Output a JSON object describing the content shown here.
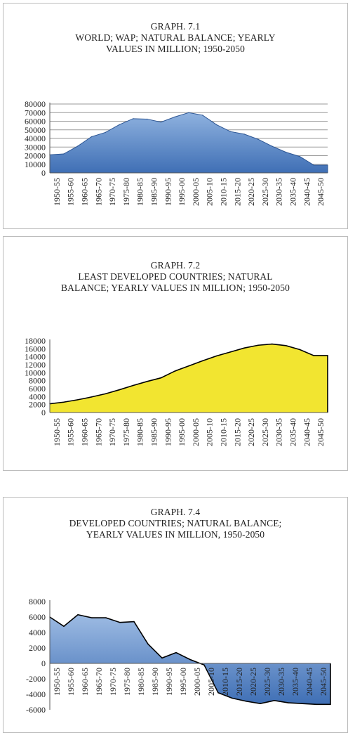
{
  "charts": [
    {
      "title_lines": [
        "GRAPH. 7.1",
        "WORLD; WAP; NATURAL BALANCE; YEARLY",
        "VALUES IN MILLION; 1950-2050"
      ],
      "fill": "#3f6fb5",
      "fill_top": "#8fb2df",
      "stroke": "#2c5593"
    },
    {
      "title_lines": [
        "GRAPH. 7.2",
        "LEAST DEVELOPED COUNTRIES; NATURAL",
        "BALANCE; YEARLY VALUES IN MILLION; 1950-2050"
      ],
      "fill": "#f2e530",
      "fill_top": "#f2e530",
      "stroke": "#000000"
    },
    {
      "title_lines": [
        "GRAPH. 7.4",
        "DEVELOPED COUNTRIES; NATURAL BALANCE;",
        "YEARLY VALUES IN MILLION, 1950-2050"
      ],
      "fill": "#3f6fb5",
      "fill_top": "#9dbbe3",
      "stroke": "#000000"
    }
  ],
  "chart_data": [
    {
      "type": "area",
      "title": "GRAPH. 7.1 WORLD; WAP; NATURAL BALANCE; YEARLY VALUES IN MILLION; 1950-2050",
      "categories": [
        "1950-55",
        "1955-60",
        "1960-65",
        "1965-70",
        "1970-75",
        "1975-80",
        "1980-85",
        "1985-90",
        "1990-95",
        "1995-00",
        "2000-05",
        "2005-10",
        "2010-15",
        "2015-20",
        "2020-25",
        "2025-30",
        "2030-35",
        "2035-40",
        "2040-45",
        "2045-50"
      ],
      "values": [
        21000,
        22000,
        31000,
        42000,
        47000,
        56000,
        63000,
        62500,
        59000,
        65000,
        70000,
        67000,
        56000,
        48000,
        45000,
        39000,
        31000,
        24000,
        19000,
        9000
      ],
      "yticks": [
        0,
        10000,
        20000,
        30000,
        40000,
        50000,
        60000,
        70000,
        80000
      ],
      "ylim": [
        0,
        80000
      ],
      "grid": true
    },
    {
      "type": "area",
      "title": "GRAPH. 7.2 LEAST DEVELOPED COUNTRIES; NATURAL BALANCE; YEARLY VALUES IN MILLION; 1950-2050",
      "categories": [
        "1950-55",
        "1955-60",
        "1960-65",
        "1965-70",
        "1970-75",
        "1975-80",
        "1980-85",
        "1985-90",
        "1990-95",
        "1995-00",
        "2000-05",
        "2005-10",
        "2010-15",
        "2015-20",
        "2020-25",
        "2025-30",
        "2030-35",
        "2035-40",
        "2040-45",
        "2045-50"
      ],
      "values": [
        2200,
        2600,
        3200,
        3900,
        4700,
        5700,
        6800,
        7800,
        8700,
        10400,
        11700,
        13000,
        14200,
        15200,
        16200,
        16900,
        17200,
        16800,
        15800,
        14300
      ],
      "yticks": [
        0,
        2000,
        4000,
        6000,
        8000,
        10000,
        12000,
        14000,
        16000,
        18000
      ],
      "ylim": [
        0,
        18000
      ],
      "grid": false
    },
    {
      "type": "area",
      "title": "GRAPH. 7.4 DEVELOPED COUNTRIES; NATURAL BALANCE; YEARLY VALUES IN MILLION, 1950-2050",
      "categories": [
        "1950-55",
        "1955-60",
        "1960-65",
        "1965-70",
        "1970-75",
        "1975-80",
        "1980-85",
        "1985-90",
        "1990-95",
        "1995-00",
        "2000-05",
        "2005-10",
        "2010-15",
        "2015-20",
        "2020-25",
        "2025-30",
        "2030-35",
        "2035-40",
        "2040-45",
        "2045-50"
      ],
      "values": [
        6000,
        4800,
        6300,
        5900,
        5900,
        5300,
        5400,
        2500,
        700,
        1400,
        500,
        -200,
        -3800,
        -4500,
        -4900,
        -5200,
        -4800,
        -5100,
        -5200,
        -5300
      ],
      "yticks": [
        -6000,
        -4000,
        -2000,
        0,
        2000,
        4000,
        6000,
        8000
      ],
      "ylim": [
        -6000,
        8000
      ],
      "grid": false
    }
  ]
}
